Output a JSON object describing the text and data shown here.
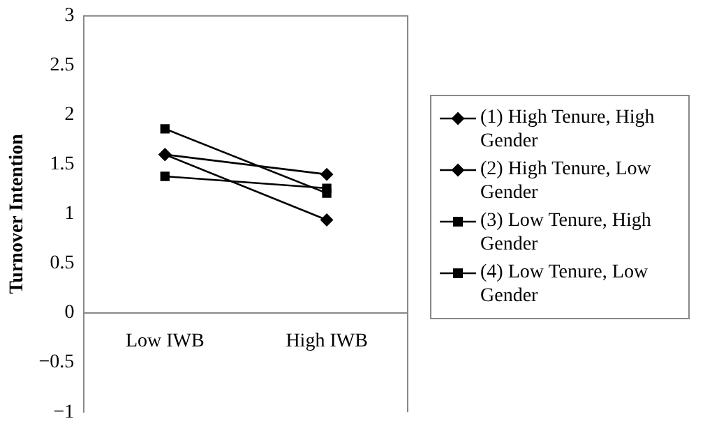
{
  "chart_data": {
    "type": "line",
    "ylabel": "Turnover Intention",
    "categories": [
      "Low IWB",
      "High IWB"
    ],
    "ylim": [
      -1,
      3
    ],
    "yticks": [
      -1,
      -0.5,
      0,
      0.5,
      1,
      1.5,
      2,
      2.5,
      3
    ],
    "grid": false,
    "legend": "right",
    "line_style": "solid",
    "series": [
      {
        "name": "(1) High Tenure, High Gender",
        "color": "#000000",
        "marker": "diamond",
        "values": [
          1.6,
          0.94
        ]
      },
      {
        "name": "(2) High Tenure, Low Gender",
        "color": "#000000",
        "marker": "diamond",
        "values": [
          1.6,
          1.4
        ]
      },
      {
        "name": "(3) Low Tenure, High Gender",
        "color": "#000000",
        "marker": "square",
        "values": [
          1.38,
          1.26
        ]
      },
      {
        "name": "(4) Low Tenure, Low Gender",
        "color": "#000000",
        "marker": "square",
        "values": [
          1.86,
          1.21
        ]
      }
    ]
  }
}
